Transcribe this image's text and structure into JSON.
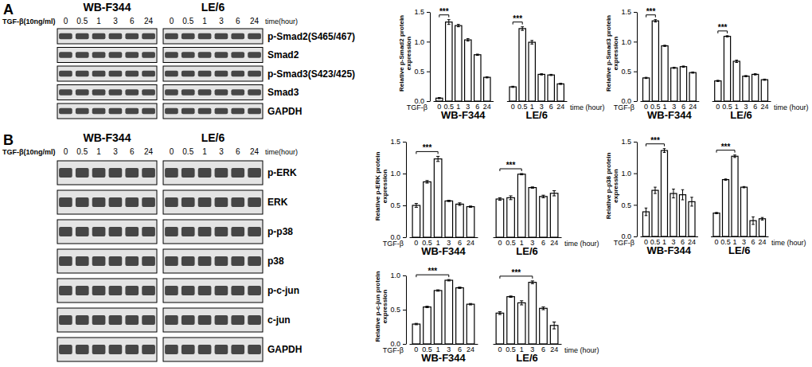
{
  "blots": [
    {
      "panel": "A",
      "cell_lines": [
        "WB-F344",
        "LE/6"
      ],
      "treatment": "TGF-β(10ng/ml)",
      "times": [
        "0",
        "0.5",
        "1",
        "3",
        "6",
        "24"
      ],
      "time_unit": "time(hour)",
      "rows": [
        "p-Smad2(S465/467)",
        "Smad2",
        "p-Smad3(S423/425)",
        "Smad3",
        "GAPDH"
      ]
    },
    {
      "panel": "B",
      "cell_lines": [
        "WB-F344",
        "LE/6"
      ],
      "treatment": "TGF-β(10ng/ml)",
      "times": [
        "0",
        "0.5",
        "1",
        "3",
        "6",
        "24"
      ],
      "time_unit": "time(hour)",
      "rows": [
        "p-ERK",
        "ERK",
        "p-p38",
        "p38",
        "p-c-jun",
        "c-jun",
        "GAPDH"
      ]
    }
  ],
  "chart_data": [
    {
      "type": "bar",
      "ylabel": [
        "Relative p-Smad2 protein",
        "expression"
      ],
      "categories": [
        "0",
        "0.5",
        "1",
        "3",
        "6",
        "24",
        "0",
        "0.5",
        "1",
        "3",
        "6",
        "24"
      ],
      "groups": [
        "WB-F344",
        "LE/6"
      ],
      "row_label": "TGF-β",
      "xlabel": "time (hour)",
      "values": [
        0.05,
        1.33,
        1.27,
        1.03,
        0.78,
        0.4,
        0.24,
        1.22,
        0.99,
        0.45,
        0.44,
        0.29
      ],
      "errors": [
        0.01,
        0.04,
        0.02,
        0.02,
        0.01,
        0.01,
        0.01,
        0.03,
        0.03,
        0.01,
        0.01,
        0.01
      ],
      "color": "#ffffff",
      "ylim": [
        0,
        1.5
      ],
      "yticks": [
        {
          "value": 0,
          "label": "0.0"
        },
        {
          "value": 0.5,
          "label": "0.5"
        },
        {
          "value": 1,
          "label": "1.0"
        },
        {
          "value": 1.5,
          "label": "1.5"
        }
      ],
      "significance": [
        {
          "from": 0,
          "to": 1,
          "label": "***"
        },
        {
          "from": 6,
          "to": 7,
          "label": "***"
        }
      ]
    },
    {
      "type": "bar",
      "ylabel": [
        "Relative p-Smad3 protein",
        "expression"
      ],
      "categories": [
        "0",
        "0.5",
        "1",
        "3",
        "6",
        "24",
        "0",
        "0.5",
        "1",
        "3",
        "6",
        "24"
      ],
      "groups": [
        "WB-F344",
        "LE/6"
      ],
      "row_label": "TGF-β",
      "xlabel": "time (hour)",
      "values": [
        0.39,
        1.35,
        0.93,
        0.56,
        0.58,
        0.48,
        0.34,
        1.09,
        0.67,
        0.42,
        0.45,
        0.36
      ],
      "errors": [
        0.01,
        0.02,
        0.01,
        0.01,
        0.01,
        0.01,
        0.01,
        0.01,
        0.02,
        0.01,
        0.01,
        0.01
      ],
      "color": "#ffffff",
      "ylim": [
        0,
        1.5
      ],
      "yticks": [
        {
          "value": 0,
          "label": "0.0"
        },
        {
          "value": 0.5,
          "label": "0.5"
        },
        {
          "value": 1,
          "label": "1.0"
        },
        {
          "value": 1.5,
          "label": "1.5"
        }
      ],
      "significance": [
        {
          "from": 0,
          "to": 1,
          "label": "***"
        },
        {
          "from": 6,
          "to": 7,
          "label": "***"
        }
      ]
    },
    {
      "type": "bar",
      "ylabel": [
        "Relative p-ERK protein",
        "expression"
      ],
      "categories": [
        "0",
        "0.5",
        "1",
        "3",
        "6",
        "24",
        "0",
        "0.5",
        "1",
        "3",
        "6",
        "24"
      ],
      "groups": [
        "WB-F344",
        "LE/6"
      ],
      "row_label": "TGF-β",
      "xlabel": "time (hour)",
      "values": [
        0.5,
        0.87,
        1.23,
        0.57,
        0.52,
        0.48,
        0.6,
        0.62,
        0.99,
        0.78,
        0.64,
        0.69
      ],
      "errors": [
        0.03,
        0.02,
        0.04,
        0.01,
        0.02,
        0.01,
        0.02,
        0.03,
        0.01,
        0.01,
        0.02,
        0.04
      ],
      "color": "#ffffff",
      "ylim": [
        0,
        1.5
      ],
      "yticks": [
        {
          "value": 0,
          "label": "0.0"
        },
        {
          "value": 0.5,
          "label": "0.5"
        },
        {
          "value": 1,
          "label": "1.0"
        },
        {
          "value": 1.5,
          "label": "1.5"
        }
      ],
      "significance": [
        {
          "from": 0,
          "to": 2,
          "label": "***"
        },
        {
          "from": 6,
          "to": 8,
          "label": "***"
        }
      ]
    },
    {
      "type": "bar",
      "ylabel": [
        "Relative p-p38 protein",
        "expression"
      ],
      "categories": [
        "0",
        "0.5",
        "1",
        "3",
        "6",
        "24",
        "0",
        "0.5",
        "1",
        "3",
        "6",
        "24"
      ],
      "groups": [
        "WB-F344",
        "LE/6"
      ],
      "row_label": "TGF-β",
      "xlabel": "time (hour)",
      "values": [
        0.39,
        0.73,
        1.36,
        0.68,
        0.66,
        0.55,
        0.37,
        0.9,
        1.27,
        0.78,
        0.25,
        0.28
      ],
      "errors": [
        0.06,
        0.05,
        0.03,
        0.07,
        0.08,
        0.07,
        0.01,
        0.01,
        0.02,
        0.01,
        0.06,
        0.02
      ],
      "color": "#ffffff",
      "ylim": [
        0,
        1.5
      ],
      "yticks": [
        {
          "value": 0,
          "label": "0.0"
        },
        {
          "value": 0.5,
          "label": "0.5"
        },
        {
          "value": 1,
          "label": "1.0"
        },
        {
          "value": 1.5,
          "label": "1.5"
        }
      ],
      "significance": [
        {
          "from": 0,
          "to": 2,
          "label": "***"
        },
        {
          "from": 6,
          "to": 8,
          "label": "***"
        }
      ]
    },
    {
      "type": "bar",
      "ylabel": [
        "Relative p-c-jun protein",
        "expression"
      ],
      "categories": [
        "0",
        "0.5",
        "1",
        "3",
        "6",
        "24",
        "0",
        "0.5",
        "1",
        "3",
        "6",
        "24"
      ],
      "groups": [
        "WB-F344",
        "LE/6"
      ],
      "row_label": "TGF-β",
      "xlabel": "time (hour)",
      "values": [
        0.29,
        0.54,
        0.78,
        0.93,
        0.82,
        0.58,
        0.45,
        0.69,
        0.6,
        0.9,
        0.52,
        0.27
      ],
      "errors": [
        0.01,
        0.01,
        0.01,
        0.01,
        0.01,
        0.01,
        0.02,
        0.01,
        0.03,
        0.02,
        0.02,
        0.05
      ],
      "color": "#ffffff",
      "ylim": [
        0,
        1
      ],
      "yticks": [
        {
          "value": 0,
          "label": "0.0"
        },
        {
          "value": 0.5,
          "label": "0.5"
        },
        {
          "value": 1,
          "label": "1.0"
        }
      ],
      "significance": [
        {
          "from": 0,
          "to": 3,
          "label": "***"
        },
        {
          "from": 6,
          "to": 9,
          "label": "***"
        }
      ]
    }
  ]
}
